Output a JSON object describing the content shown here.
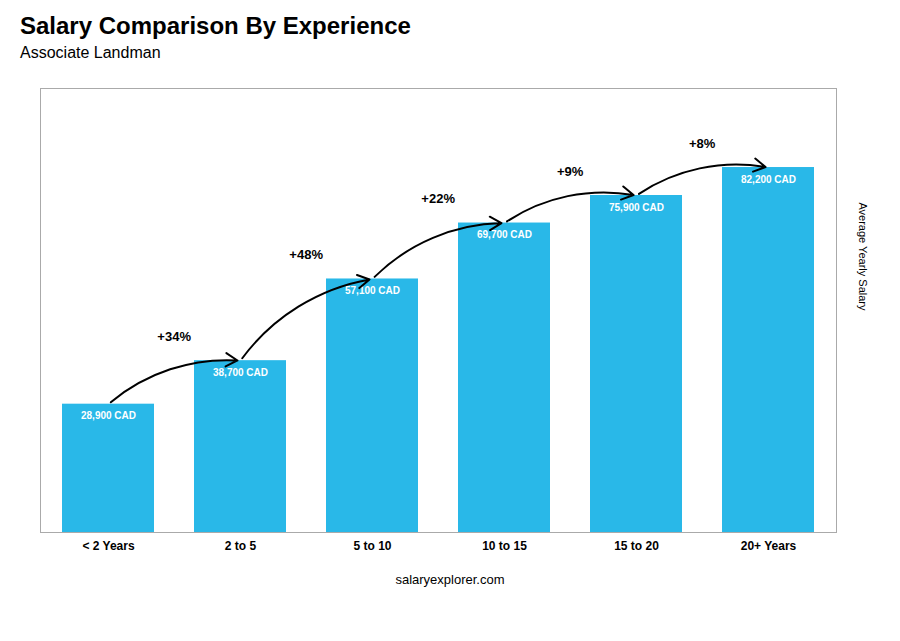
{
  "chart_data": {
    "type": "bar",
    "title": "Salary Comparison By Experience",
    "subtitle": "Associate Landman",
    "categories": [
      "< 2 Years",
      "2 to 5",
      "5 to 10",
      "10 to 15",
      "15 to 20",
      "20+ Years"
    ],
    "values": [
      28900,
      38700,
      57100,
      69700,
      75900,
      82200
    ],
    "value_labels": [
      "28,900 CAD",
      "38,700 CAD",
      "57,100 CAD",
      "69,700 CAD",
      "75,900 CAD",
      "82,200 CAD"
    ],
    "data_labels": true,
    "color": "#29b8e8",
    "ylim": [
      0,
      100000
    ],
    "ylabel": "Average Yearly Salary",
    "tick_labels": "x",
    "grid": false,
    "annotations": [
      "+34%",
      "+48%",
      "+22%",
      "+9%",
      "+8%"
    ],
    "caption": "salaryexplorer.com"
  }
}
